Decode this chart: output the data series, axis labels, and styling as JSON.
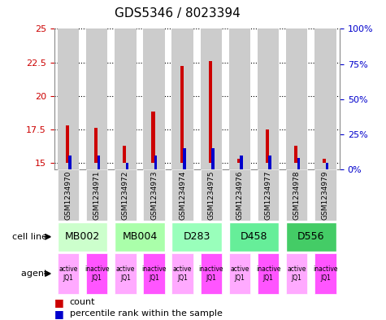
{
  "title": "GDS5346 / 8023394",
  "samples": [
    "GSM1234970",
    "GSM1234971",
    "GSM1234972",
    "GSM1234973",
    "GSM1234974",
    "GSM1234975",
    "GSM1234976",
    "GSM1234977",
    "GSM1234978",
    "GSM1234979"
  ],
  "count_values": [
    17.8,
    17.6,
    16.3,
    18.8,
    22.2,
    22.6,
    15.3,
    17.5,
    16.3,
    15.3
  ],
  "count_base": 15.0,
  "percentile_values": [
    10,
    10,
    5,
    10,
    15,
    15,
    10,
    10,
    8,
    5
  ],
  "ylim_left": [
    14.5,
    25
  ],
  "ylim_right": [
    0,
    100
  ],
  "yticks_left": [
    15,
    17.5,
    20,
    22.5,
    25
  ],
  "yticks_right": [
    0,
    25,
    50,
    75,
    100
  ],
  "ytick_labels_right": [
    "0%",
    "25%",
    "50%",
    "75%",
    "100%"
  ],
  "cell_lines": [
    {
      "label": "MB002",
      "cols": [
        0,
        1
      ],
      "color": "#ccffcc"
    },
    {
      "label": "MB004",
      "cols": [
        2,
        3
      ],
      "color": "#aaffaa"
    },
    {
      "label": "D283",
      "cols": [
        4,
        5
      ],
      "color": "#99ffbb"
    },
    {
      "label": "D458",
      "cols": [
        6,
        7
      ],
      "color": "#66ee99"
    },
    {
      "label": "D556",
      "cols": [
        8,
        9
      ],
      "color": "#44cc66"
    }
  ],
  "agent_texts": [
    "active\nJQ1",
    "inactive\nJQ1",
    "active\nJQ1",
    "inactive\nJQ1",
    "active\nJQ1",
    "inactive\nJQ1",
    "active\nJQ1",
    "inactive\nJQ1",
    "active\nJQ1",
    "inactive\nJQ1"
  ],
  "agent_colors": [
    "#ffaaff",
    "#ff55ff",
    "#ffaaff",
    "#ff55ff",
    "#ffaaff",
    "#ff55ff",
    "#ffaaff",
    "#ff55ff",
    "#ffaaff",
    "#ff55ff"
  ],
  "bar_color_red": "#cc0000",
  "bar_color_blue": "#0000cc",
  "bar_bg_color": "#cccccc",
  "grid_color": "#000000",
  "fig_bg": "#ffffff",
  "left_label_color": "#cc0000",
  "right_label_color": "#0000cc",
  "title_fontsize": 11
}
